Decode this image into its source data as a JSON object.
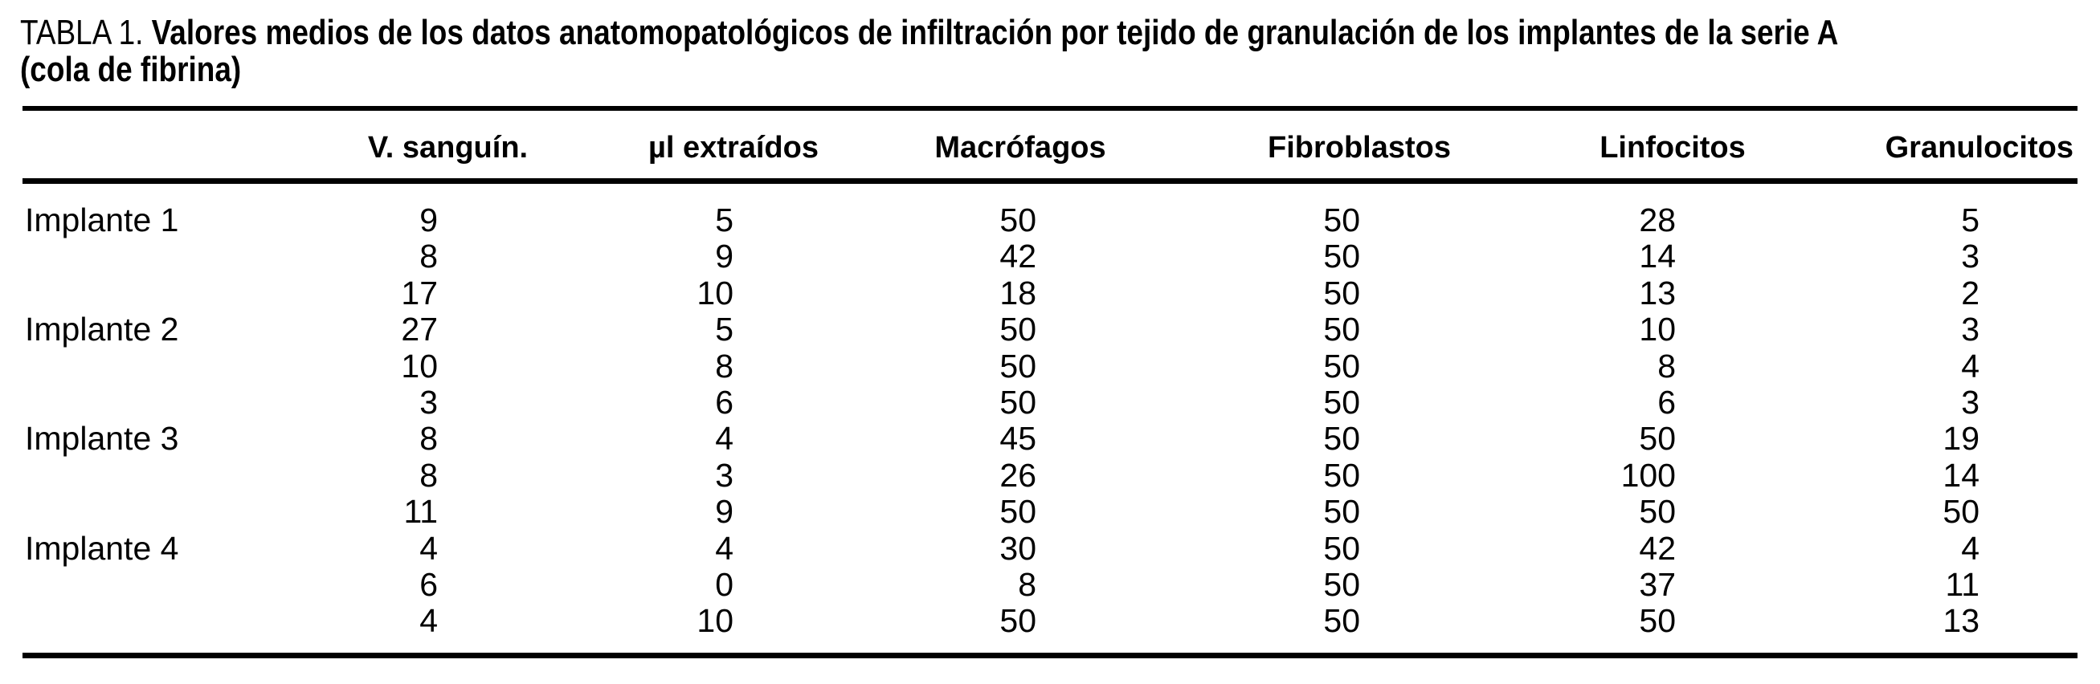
{
  "title": {
    "label": "TABLA 1.",
    "line1": "Valores medios de los datos anatomopatológicos de infiltración por tejido de granulación de los implantes de la serie A",
    "line2": "(cola de fibrina)"
  },
  "colors": {
    "text": "#000000",
    "background": "#ffffff",
    "rule": "#000000"
  },
  "chart_data": {
    "type": "table",
    "columns": [
      "",
      "V. sanguín.",
      "µl extraídos",
      "Macrófagos",
      "Fibroblastos",
      "Linfocitos",
      "Granulocitos"
    ],
    "rows": [
      {
        "label": "Implante 1",
        "values": [
          9,
          5,
          50,
          50,
          28,
          5
        ]
      },
      {
        "label": "",
        "values": [
          8,
          9,
          42,
          50,
          14,
          3
        ]
      },
      {
        "label": "",
        "values": [
          17,
          10,
          18,
          50,
          13,
          2
        ]
      },
      {
        "label": "Implante 2",
        "values": [
          27,
          5,
          50,
          50,
          10,
          3
        ]
      },
      {
        "label": "",
        "values": [
          10,
          8,
          50,
          50,
          8,
          4
        ]
      },
      {
        "label": "",
        "values": [
          3,
          6,
          50,
          50,
          6,
          3
        ]
      },
      {
        "label": "Implante 3",
        "values": [
          8,
          4,
          45,
          50,
          50,
          19
        ]
      },
      {
        "label": "",
        "values": [
          8,
          3,
          26,
          50,
          100,
          14
        ]
      },
      {
        "label": "",
        "values": [
          11,
          9,
          50,
          50,
          50,
          50
        ]
      },
      {
        "label": "Implante 4",
        "values": [
          4,
          4,
          30,
          50,
          42,
          4
        ]
      },
      {
        "label": "",
        "values": [
          6,
          0,
          8,
          50,
          37,
          11
        ]
      },
      {
        "label": "",
        "values": [
          4,
          10,
          50,
          50,
          50,
          13
        ]
      }
    ]
  }
}
